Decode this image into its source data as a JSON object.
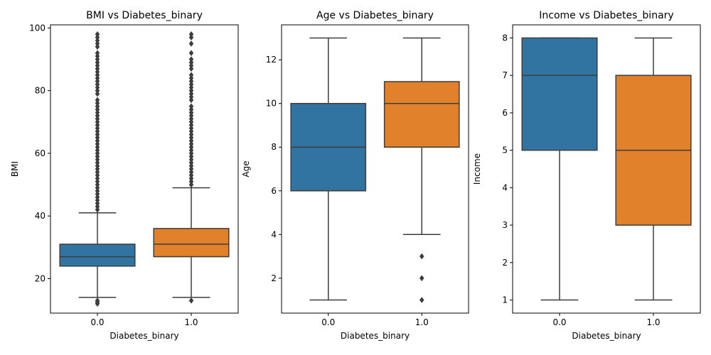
{
  "chart_data": [
    {
      "type": "box",
      "title": "BMI vs Diabetes_binary",
      "xlabel": "Diabetes_binary",
      "ylabel": "BMI",
      "categories": [
        "0.0",
        "1.0"
      ],
      "ylim": [
        9,
        101
      ],
      "yticks": [
        20,
        40,
        60,
        80,
        100
      ],
      "colors": [
        "#3274a1",
        "#e1812c"
      ],
      "boxes": [
        {
          "category": "0.0",
          "q1": 24,
          "median": 27,
          "q3": 31,
          "whisker_low": 14,
          "whisker_high": 41,
          "outliers": [
            12,
            12.5,
            13,
            42,
            43,
            44,
            45,
            46,
            47,
            48,
            49,
            50,
            51,
            52,
            53,
            54,
            55,
            56,
            57,
            58,
            59,
            60,
            61,
            62,
            63,
            64,
            65,
            66,
            67,
            68,
            69,
            70,
            71,
            72,
            73,
            74,
            75,
            76,
            77,
            79,
            80,
            81,
            82,
            83,
            84,
            85,
            86,
            87,
            88,
            89,
            90,
            91,
            92,
            94,
            95,
            96,
            97,
            98
          ]
        },
        {
          "category": "1.0",
          "q1": 27,
          "median": 31,
          "q3": 36,
          "whisker_low": 14,
          "whisker_high": 49,
          "outliers": [
            13,
            50,
            51,
            52,
            53,
            54,
            55,
            56,
            57,
            58,
            59,
            60,
            61,
            62,
            63,
            64,
            65,
            66,
            67,
            68,
            69,
            70,
            71,
            72,
            73,
            74,
            75,
            77,
            78,
            79,
            80,
            81,
            82,
            83,
            84,
            85,
            87,
            88,
            89,
            90,
            92,
            95,
            97,
            98
          ]
        }
      ]
    },
    {
      "type": "box",
      "title": "Age vs Diabetes_binary",
      "xlabel": "Diabetes_binary",
      "ylabel": "Age",
      "categories": [
        "0.0",
        "1.0"
      ],
      "ylim": [
        0.4,
        13.6
      ],
      "yticks": [
        2,
        4,
        6,
        8,
        10,
        12
      ],
      "colors": [
        "#3274a1",
        "#e1812c"
      ],
      "boxes": [
        {
          "category": "0.0",
          "q1": 6,
          "median": 8,
          "q3": 10,
          "whisker_low": 1,
          "whisker_high": 13,
          "outliers": []
        },
        {
          "category": "1.0",
          "q1": 8,
          "median": 10,
          "q3": 11,
          "whisker_low": 4,
          "whisker_high": 13,
          "outliers": [
            1,
            2,
            3
          ]
        }
      ]
    },
    {
      "type": "box",
      "title": "Income vs Diabetes_binary",
      "xlabel": "Diabetes_binary",
      "ylabel": "Income",
      "categories": [
        "0.0",
        "1.0"
      ],
      "ylim": [
        0.65,
        8.35
      ],
      "yticks": [
        1,
        2,
        3,
        4,
        5,
        6,
        7,
        8
      ],
      "colors": [
        "#3274a1",
        "#e1812c"
      ],
      "boxes": [
        {
          "category": "0.0",
          "q1": 5,
          "median": 7,
          "q3": 8,
          "whisker_low": 1,
          "whisker_high": 8,
          "outliers": []
        },
        {
          "category": "1.0",
          "q1": 3,
          "median": 5,
          "q3": 7,
          "whisker_low": 1,
          "whisker_high": 8,
          "outliers": []
        }
      ]
    }
  ]
}
